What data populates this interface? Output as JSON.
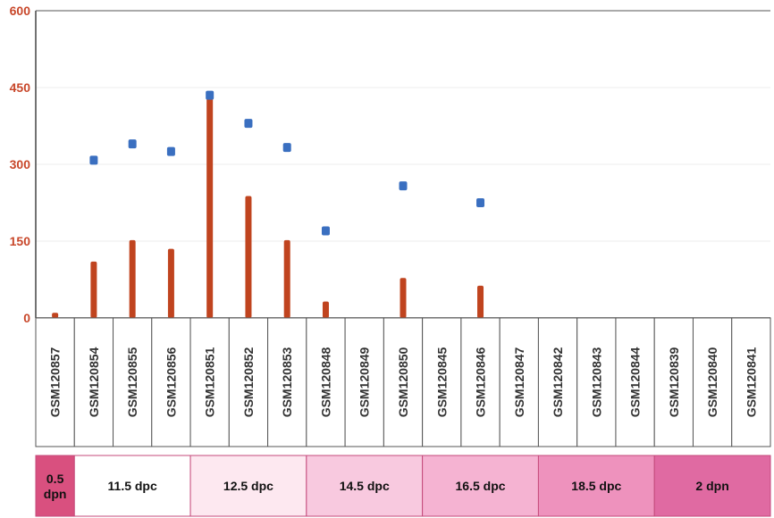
{
  "chart_data": {
    "type": "bar",
    "ylim": [
      0,
      600
    ],
    "yticks": [
      0,
      150,
      300,
      450,
      600
    ],
    "categories": [
      "GSM120857",
      "GSM120854",
      "GSM120855",
      "GSM120856",
      "GSM120851",
      "GSM120852",
      "GSM120853",
      "GSM120848",
      "GSM120849",
      "GSM120850",
      "GSM120845",
      "GSM120846",
      "GSM120847",
      "GSM120842",
      "GSM120843",
      "GSM120844",
      "GSM120839",
      "GSM120840",
      "GSM120841"
    ],
    "series": [
      {
        "kind": "bar",
        "color": "#c0441f",
        "values": [
          10,
          110,
          152,
          135,
          435,
          238,
          152,
          32,
          0,
          78,
          0,
          63,
          0,
          0,
          0,
          0,
          0,
          0,
          0
        ]
      },
      {
        "kind": "point",
        "color": "#3a6fc0",
        "values": [
          null,
          308,
          340,
          325,
          435,
          380,
          333,
          170,
          null,
          258,
          null,
          225,
          null,
          null,
          null,
          null,
          null,
          null,
          null
        ]
      }
    ],
    "groups": [
      {
        "label": "0.5\ndpn",
        "start": 0,
        "end": 0,
        "color": "#d9507f"
      },
      {
        "label": "11.5 dpc",
        "start": 1,
        "end": 3,
        "color": "#ffffff"
      },
      {
        "label": "12.5 dpc",
        "start": 4,
        "end": 6,
        "color": "#fde8f0"
      },
      {
        "label": "14.5 dpc",
        "start": 7,
        "end": 9,
        "color": "#f8c9df"
      },
      {
        "label": "16.5 dpc",
        "start": 10,
        "end": 12,
        "color": "#f5b3d2"
      },
      {
        "label": "18.5 dpc",
        "start": 13,
        "end": 15,
        "color": "#ee92bd"
      },
      {
        "label": "2 dpn",
        "start": 16,
        "end": 18,
        "color": "#e06aa2"
      }
    ]
  }
}
